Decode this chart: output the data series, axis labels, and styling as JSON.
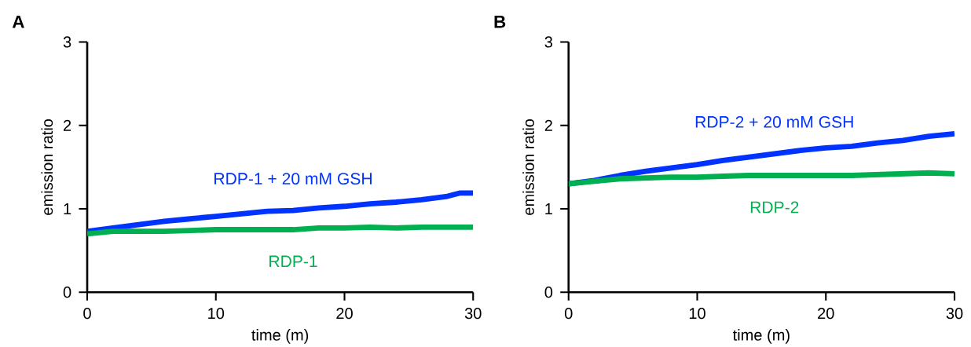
{
  "chart_data": [
    {
      "type": "line",
      "title": "A",
      "xlabel": "time (m)",
      "ylabel": "emission ratio",
      "x": [
        0,
        2,
        4,
        6,
        8,
        10,
        12,
        14,
        16,
        18,
        20,
        22,
        24,
        26,
        28,
        29,
        30
      ],
      "xlim": [
        0,
        30
      ],
      "ylim": [
        0,
        3
      ],
      "xticks": [
        0,
        10,
        20,
        30
      ],
      "yticks": [
        0,
        1,
        2,
        3
      ],
      "legend": false,
      "grid": false,
      "series": [
        {
          "name": "RDP-1 + 20 mM GSH",
          "color": "#0033ff",
          "values": [
            0.73,
            0.77,
            0.81,
            0.85,
            0.88,
            0.91,
            0.94,
            0.97,
            0.98,
            1.01,
            1.03,
            1.06,
            1.08,
            1.11,
            1.15,
            1.19,
            1.19
          ]
        },
        {
          "name": "RDP-1",
          "color": "#00b050",
          "values": [
            0.7,
            0.73,
            0.73,
            0.73,
            0.74,
            0.75,
            0.75,
            0.75,
            0.75,
            0.77,
            0.77,
            0.78,
            0.77,
            0.78,
            0.78,
            0.78,
            0.78
          ]
        }
      ]
    },
    {
      "type": "line",
      "title": "B",
      "xlabel": "time (m)",
      "ylabel": "emission ratio",
      "x": [
        0,
        2,
        4,
        6,
        8,
        10,
        12,
        14,
        16,
        18,
        20,
        22,
        24,
        26,
        28,
        30
      ],
      "xlim": [
        0,
        30
      ],
      "ylim": [
        0,
        3
      ],
      "xticks": [
        0,
        10,
        20,
        30
      ],
      "yticks": [
        0,
        1,
        2,
        3
      ],
      "legend": false,
      "grid": false,
      "series": [
        {
          "name": "RDP-2 + 20 mM GSH",
          "color": "#0033ff",
          "values": [
            1.3,
            1.34,
            1.4,
            1.45,
            1.49,
            1.53,
            1.58,
            1.62,
            1.66,
            1.7,
            1.73,
            1.75,
            1.79,
            1.82,
            1.87,
            1.9
          ]
        },
        {
          "name": "RDP-2",
          "color": "#00b050",
          "values": [
            1.3,
            1.33,
            1.36,
            1.37,
            1.38,
            1.38,
            1.39,
            1.4,
            1.4,
            1.4,
            1.4,
            1.4,
            1.41,
            1.42,
            1.43,
            1.42
          ]
        }
      ]
    }
  ]
}
